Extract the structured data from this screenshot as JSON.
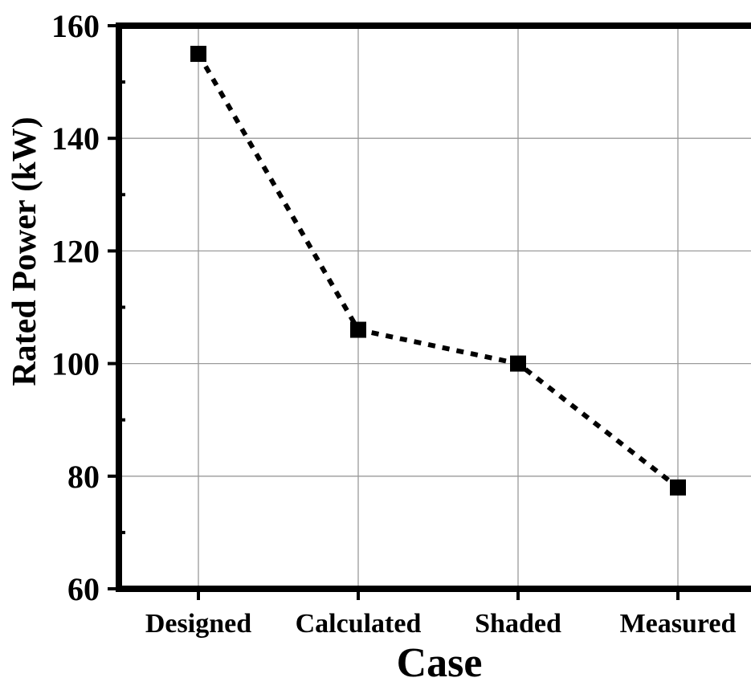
{
  "chart_data": {
    "type": "line",
    "title": "",
    "xlabel": "Case",
    "ylabel": "Rated Power (kW)",
    "categories": [
      "Designed",
      "Calculated",
      "Shaded",
      "Measured"
    ],
    "series": [
      {
        "values": [
          155,
          106,
          100,
          78
        ],
        "line_style": "dotted",
        "marker": "square",
        "color": "#000000"
      }
    ],
    "ylim": [
      60,
      160
    ],
    "yticks": [
      60,
      80,
      100,
      120,
      140,
      160
    ],
    "grid": true,
    "legend": "none"
  }
}
